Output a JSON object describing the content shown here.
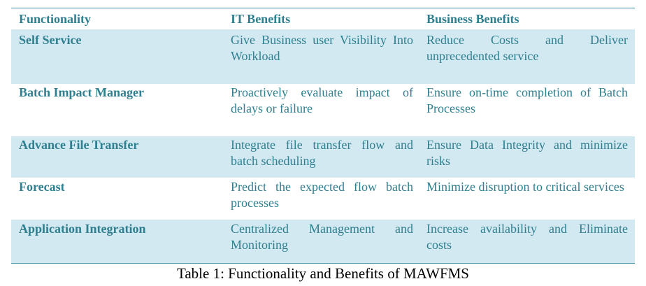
{
  "table": {
    "headers": [
      "Functionality",
      "IT Benefits",
      "Business Benefits"
    ],
    "rows": [
      [
        "Self Service",
        "Give Business user Visibility Into Workload",
        "Reduce Costs and Deliver unprecedented service"
      ],
      [
        "Batch Impact Manager",
        "Proactively evaluate impact of delays or failure",
        "Ensure on-time completion of Batch Processes"
      ],
      [
        "Advance File Transfer",
        "Integrate file transfer flow and batch scheduling",
        "Ensure Data Integrity and minimize risks"
      ],
      [
        "Forecast",
        "Predict the expected flow batch processes",
        "Minimize disruption to critical services"
      ],
      [
        "Application Integration",
        "Centralized Management and Monitoring",
        "Increase availability and Eliminate costs"
      ]
    ]
  },
  "caption": "Table 1: Functionality and Benefits of MAWFMS",
  "colors": {
    "text": "#2e7f8f",
    "row_shade": "#d3e9f1",
    "rule": "#3b8ea0",
    "caption": "#000000"
  }
}
